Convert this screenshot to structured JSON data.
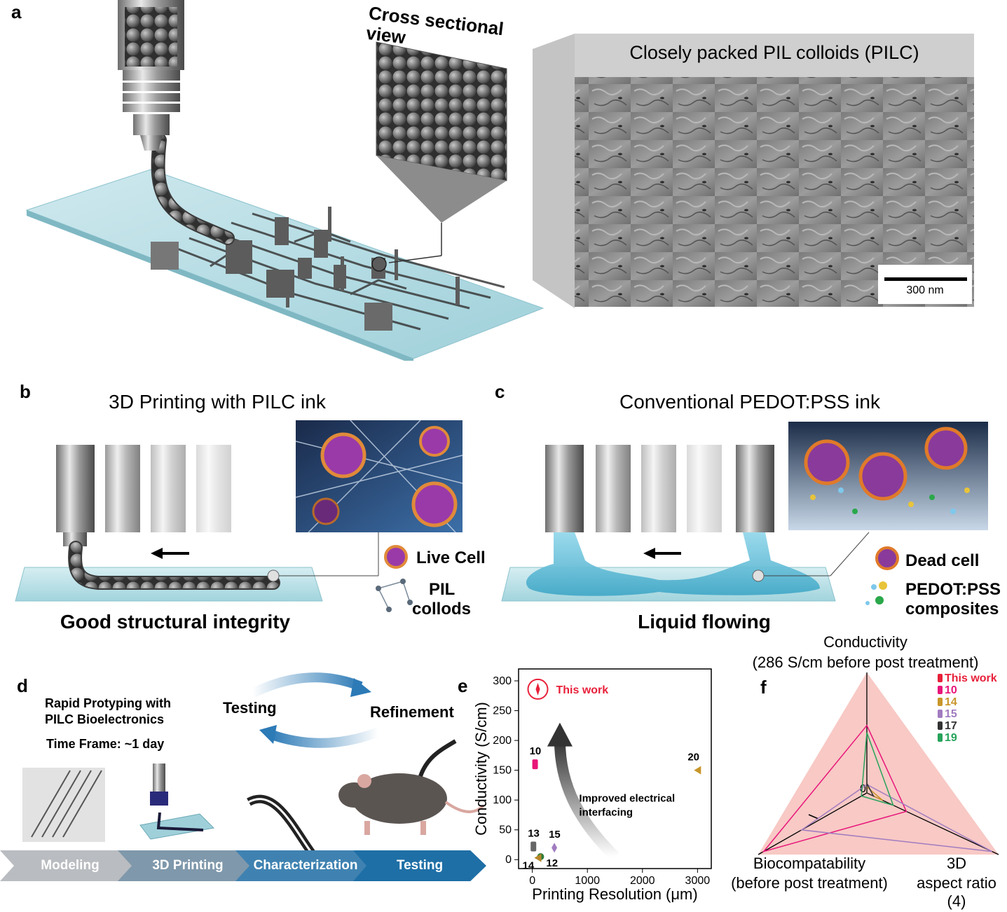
{
  "panel_a": {
    "letter": "a",
    "cross_section_label": "Cross sectional view",
    "sem_title": "Closely packed PIL colloids (PILC)",
    "scale_bar": "300 nm"
  },
  "panel_b": {
    "letter": "b",
    "title": "3D Printing with PILC ink",
    "caption": "Good structural integrity",
    "legend_live_cell": "Live Cell",
    "legend_pil_line1": "PIL",
    "legend_pil_line2": "collods"
  },
  "panel_c": {
    "letter": "c",
    "title": "Conventional PEDOT:PSS ink",
    "caption": "Liquid flowing",
    "legend_dead_cell": "Dead cell",
    "legend_pedot_line1": "PEDOT:PSS",
    "legend_pedot_line2": "composites"
  },
  "panel_d": {
    "letter": "d",
    "heading_line1": "Rapid Protyping with",
    "heading_line2": "PILC Bioelectronics",
    "time_frame": "Time Frame: ~1 day",
    "cycle_testing": "Testing",
    "cycle_refinement": "Refinement",
    "steps": [
      "Modeling",
      "3D Printing",
      "Characterization",
      "Testing"
    ],
    "colors": {
      "step1": "#b9bcc0",
      "step2": "#7f98ab",
      "step3": "#3f82b1",
      "step4": "#1e6fa6"
    }
  },
  "panel_e": {
    "letter": "e",
    "annotation": "This work",
    "arrow_label_line1": "Improved electrical",
    "arrow_label_line2": "interfacing",
    "chart_data": {
      "type": "scatter",
      "xlabel": "Printing Resolution (μm)",
      "ylabel": "Conductivity (S/cm)",
      "xlim": [
        -250,
        3250
      ],
      "ylim": [
        -15,
        320
      ],
      "x_ticks": [
        0,
        1000,
        2000,
        3000
      ],
      "y_ticks": [
        0,
        50,
        100,
        150,
        200,
        250,
        300
      ],
      "series": [
        {
          "name": "This work",
          "x": 100,
          "y": 286,
          "color": "#e8203a",
          "marker": "star"
        },
        {
          "name": "10",
          "x": 50,
          "y": 160,
          "color": "#e8167a",
          "marker": "rect"
        },
        {
          "name": "20",
          "x": 3000,
          "y": 150,
          "color": "#c8962a",
          "marker": "tri"
        },
        {
          "name": "13",
          "x": 20,
          "y": 22,
          "color": "#666666",
          "marker": "rect"
        },
        {
          "name": "15",
          "x": 400,
          "y": 20,
          "color": "#a17cc0",
          "marker": "diamond"
        },
        {
          "name": "12",
          "x": 150,
          "y": 5,
          "color": "#2f7d3a",
          "marker": "circle"
        },
        {
          "name": "14",
          "x": 100,
          "y": 3,
          "color": "#b5862a",
          "marker": "tri"
        }
      ],
      "grid": false
    }
  },
  "panel_f": {
    "letter": "f",
    "axis_top_line1": "Conductivity",
    "axis_top_line2": "(286 S/cm before post treatment)",
    "axis_left_line1": "Biocompatability",
    "axis_left_line2": "(before post treatment)",
    "axis_right_line1": "3D",
    "axis_right_line2": "aspect ratio",
    "axis_right_line3": "(4)",
    "zero_label": "0",
    "chart_data": {
      "type": "radar",
      "axes": [
        "Conductivity",
        "Biocompatability",
        "3D aspect ratio"
      ],
      "series": [
        {
          "name": "This work",
          "values": [
            1,
            1,
            1
          ],
          "color": "#e8203a"
        },
        {
          "name": "10",
          "values": [
            0.56,
            0.95,
            0.3
          ],
          "color": "#e8167a"
        },
        {
          "name": "14",
          "values": [
            0.05,
            0.0,
            0.12
          ],
          "color": "#c8962a"
        },
        {
          "name": "15",
          "values": [
            0.07,
            0.6,
            0.95
          ],
          "color": "#a17cc0"
        },
        {
          "name": "17",
          "values": [
            0.08,
            0.0,
            0.05
          ],
          "color": "#333333"
        },
        {
          "name": "19",
          "values": [
            0.5,
            0.05,
            0.2
          ],
          "color": "#27a35a"
        }
      ]
    }
  }
}
